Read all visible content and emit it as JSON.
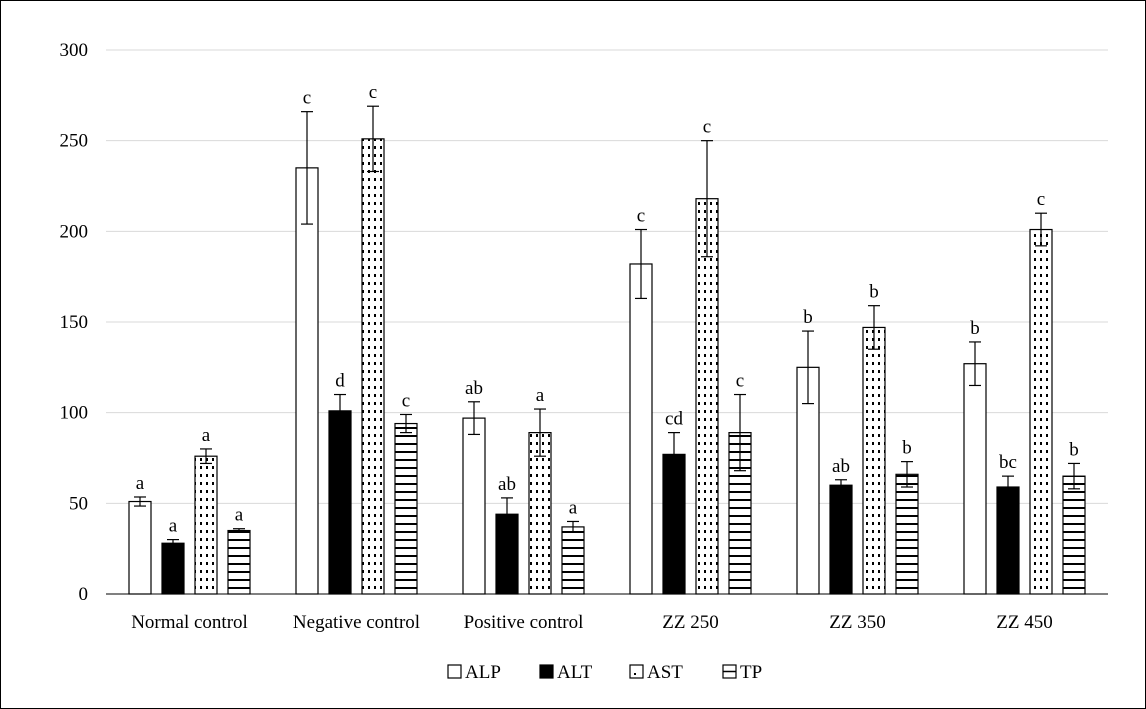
{
  "chart_data": {
    "type": "bar",
    "title": "",
    "xlabel": "",
    "ylabel": "",
    "ylim": [
      0,
      300
    ],
    "yticks": [
      0,
      50,
      100,
      150,
      200,
      250,
      300
    ],
    "grid": true,
    "legend_position": "bottom",
    "categories": [
      "Normal control",
      "Negative control",
      "Positive control",
      "ZZ 250",
      "ZZ 350",
      "ZZ 450"
    ],
    "series": [
      {
        "name": "ALP",
        "pattern": "white",
        "values": [
          51,
          235,
          97,
          182,
          125,
          127
        ],
        "errors": [
          2.5,
          31,
          9,
          19,
          20,
          12
        ],
        "letters": [
          "a",
          "c",
          "ab",
          "c",
          "b",
          "b"
        ]
      },
      {
        "name": "ALT",
        "pattern": "black",
        "values": [
          28,
          101,
          44,
          77,
          60,
          59
        ],
        "errors": [
          2,
          9,
          9,
          12,
          3,
          6
        ],
        "letters": [
          "a",
          "d",
          "ab",
          "cd",
          "ab",
          "bc"
        ]
      },
      {
        "name": "AST",
        "pattern": "dotted",
        "values": [
          76,
          251,
          89,
          218,
          147,
          201
        ],
        "errors": [
          4,
          18,
          13,
          32,
          12,
          9
        ],
        "letters": [
          "a",
          "c",
          "a",
          "c",
          "b",
          "c"
        ]
      },
      {
        "name": "TP",
        "pattern": "horizontal-lines",
        "values": [
          35,
          94,
          37,
          89,
          66,
          65
        ],
        "errors": [
          1,
          5,
          3,
          21,
          7,
          7
        ],
        "letters": [
          "a",
          "c",
          "a",
          "c",
          "b",
          "b"
        ]
      }
    ]
  }
}
